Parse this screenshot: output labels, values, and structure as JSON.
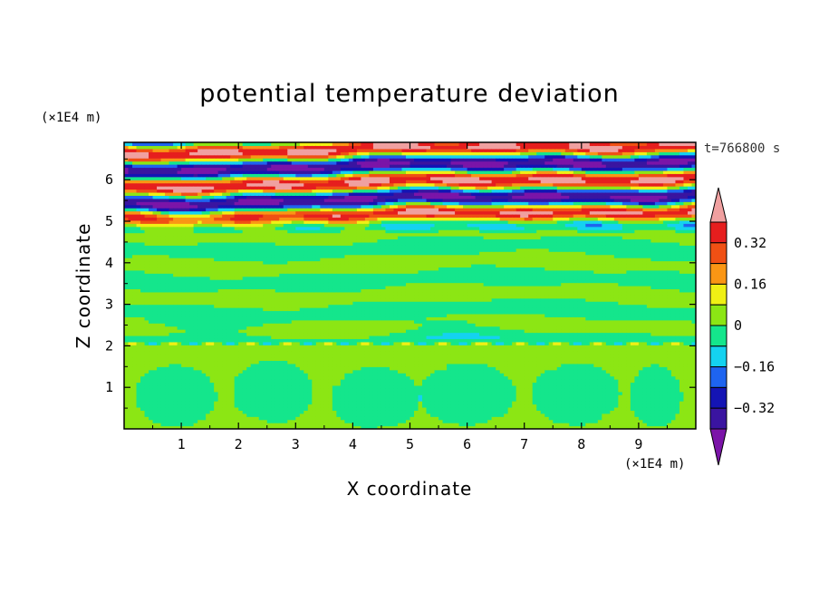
{
  "chart_data": {
    "type": "heatmap",
    "title": "potential temperature deviation",
    "xlabel": "X coordinate",
    "ylabel": "Z coordinate",
    "x_unit": "(×1E4 m)",
    "y_unit": "(×1E4 m)",
    "time_label": "t=766800 s",
    "xlim": [
      0,
      10
    ],
    "ylim": [
      0,
      6.9
    ],
    "x_ticks": [
      "1",
      "2",
      "3",
      "4",
      "5",
      "6",
      "7",
      "8",
      "9"
    ],
    "y_ticks": [
      "1",
      "2",
      "3",
      "4",
      "5",
      "6"
    ],
    "colorbar": {
      "levels": [
        -0.4,
        -0.32,
        -0.24,
        -0.16,
        -0.08,
        0,
        0.08,
        0.16,
        0.24,
        0.32,
        0.4
      ],
      "labels": [
        "0.32",
        "0.16",
        "0",
        "−0.16",
        "−0.32"
      ],
      "colors": [
        "#7b14a8",
        "#3a14a0",
        "#1414b4",
        "#1e64f0",
        "#14d2f0",
        "#14e68c",
        "#8ce614",
        "#f0f014",
        "#fa9614",
        "#f05014",
        "#e61e1e",
        "#f0a0a0"
      ],
      "extend": "both"
    },
    "field_description_layers": [
      {
        "z_range": [
          0,
          2.0
        ],
        "dominant": "0 to 0.08 (green-yellow) with blobs of −0.08 to 0 (green)"
      },
      {
        "z_range": [
          2.0,
          4.8
        ],
        "dominant": "banded −0.08 to 0.08 layers"
      },
      {
        "z_range": [
          4.8,
          6.9
        ],
        "dominant": "strong oscillating bands −0.4 to 0.4"
      }
    ]
  }
}
